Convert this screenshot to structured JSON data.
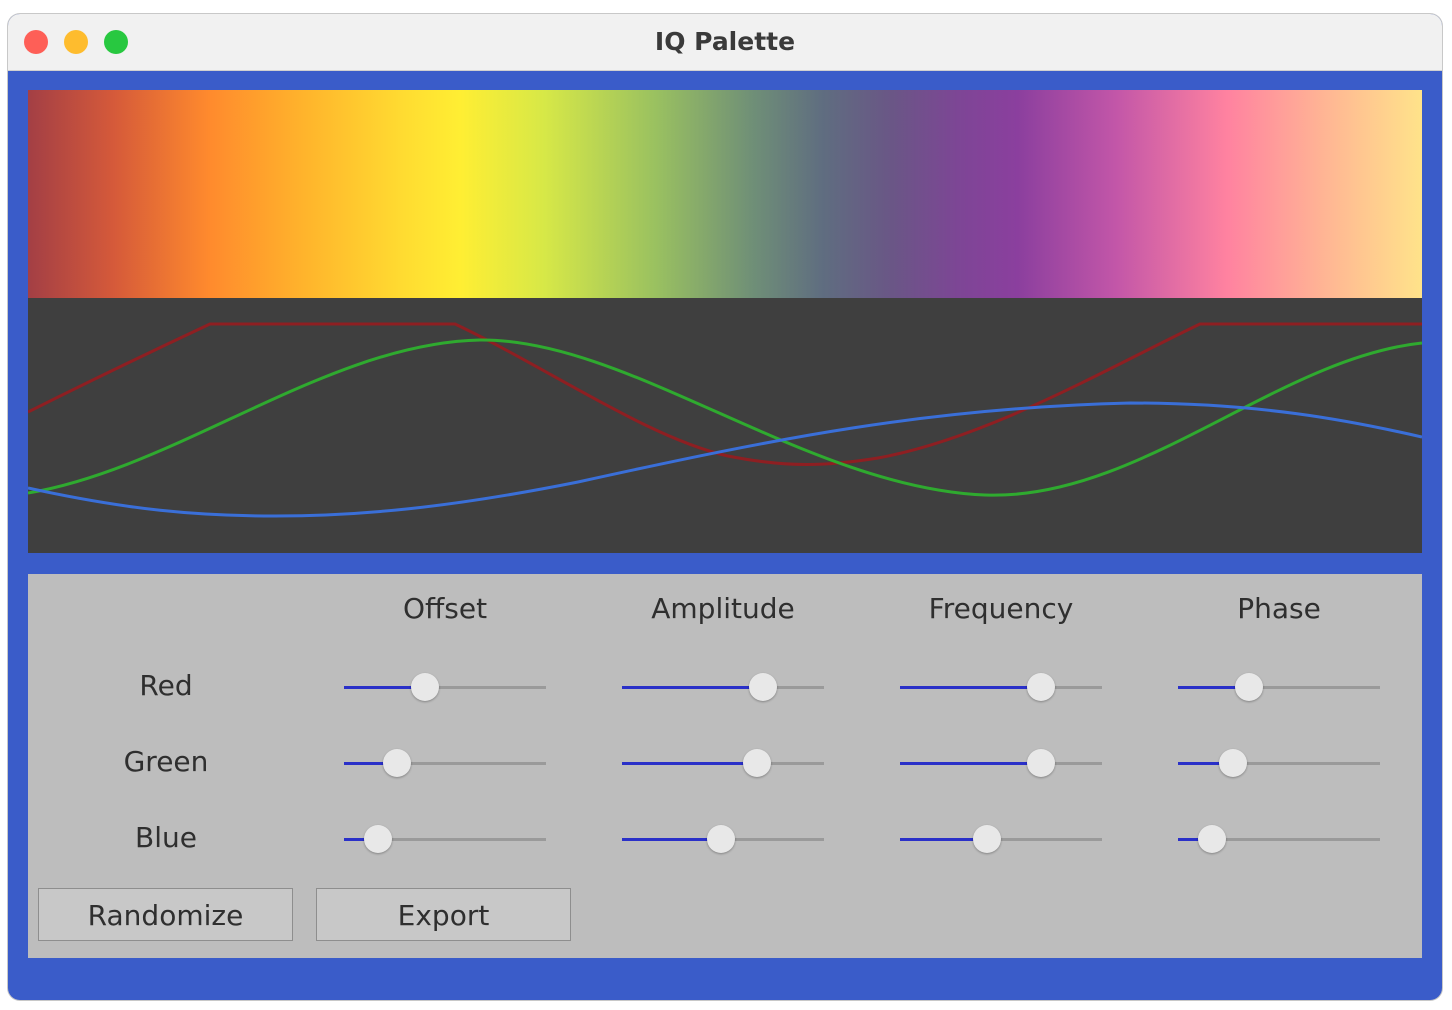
{
  "window": {
    "title": "IQ Palette"
  },
  "columns": [
    "Offset",
    "Amplitude",
    "Frequency",
    "Phase"
  ],
  "rows": [
    {
      "label": "Red",
      "sliders": [
        0.4,
        0.7,
        0.7,
        0.35
      ]
    },
    {
      "label": "Green",
      "sliders": [
        0.26,
        0.67,
        0.7,
        0.27
      ]
    },
    {
      "label": "Blue",
      "sliders": [
        0.17,
        0.49,
        0.43,
        0.17
      ]
    }
  ],
  "buttons": [
    "Randomize",
    "Export"
  ]
}
